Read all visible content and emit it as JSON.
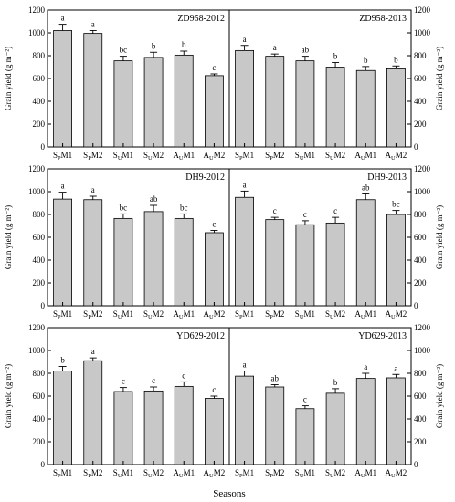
{
  "chart_data": {
    "type": "bar",
    "xlabel": "Seasons",
    "ylabel": "Grain yield (g m⁻²)",
    "ylim": [
      0,
      1200
    ],
    "yticks": [
      0,
      200,
      400,
      600,
      800,
      1000,
      1200
    ],
    "categories": [
      {
        "main1": "S",
        "sub": "P",
        "main2": "M1"
      },
      {
        "main1": "S",
        "sub": "P",
        "main2": "M2"
      },
      {
        "main1": "S",
        "sub": "U",
        "main2": "M1"
      },
      {
        "main1": "S",
        "sub": "U",
        "main2": "M2"
      },
      {
        "main1": "A",
        "sub": "U",
        "main2": "M1"
      },
      {
        "main1": "A",
        "sub": "U",
        "main2": "M2"
      }
    ],
    "panels": [
      {
        "title": "ZD958-2012",
        "values": [
          1020,
          995,
          755,
          785,
          805,
          625
        ],
        "errors": [
          55,
          25,
          40,
          45,
          35,
          15
        ],
        "letters": [
          "a",
          "a",
          "bc",
          "b",
          "b",
          "c"
        ]
      },
      {
        "title": "ZD958-2013",
        "values": [
          845,
          795,
          755,
          700,
          670,
          685
        ],
        "errors": [
          45,
          20,
          40,
          40,
          35,
          25
        ],
        "letters": [
          "a",
          "a",
          "ab",
          "b",
          "b",
          "b"
        ]
      },
      {
        "title": "DH9-2012",
        "values": [
          935,
          930,
          765,
          825,
          765,
          640
        ],
        "errors": [
          60,
          30,
          40,
          55,
          40,
          20
        ],
        "letters": [
          "a",
          "a",
          "bc",
          "ab",
          "bc",
          "c"
        ]
      },
      {
        "title": "DH9-2013",
        "values": [
          950,
          755,
          710,
          725,
          930,
          800
        ],
        "errors": [
          55,
          20,
          35,
          50,
          50,
          35
        ],
        "letters": [
          "a",
          "c",
          "c",
          "c",
          "ab",
          "bc"
        ]
      },
      {
        "title": "YD629-2012",
        "values": [
          820,
          910,
          640,
          645,
          685,
          580
        ],
        "errors": [
          40,
          25,
          35,
          35,
          40,
          20
        ],
        "letters": [
          "b",
          "a",
          "c",
          "c",
          "c",
          "c"
        ]
      },
      {
        "title": "YD629-2013",
        "values": [
          775,
          680,
          490,
          625,
          755,
          760
        ],
        "errors": [
          45,
          20,
          25,
          40,
          45,
          30
        ],
        "letters": [
          "a",
          "ab",
          "c",
          "b",
          "a",
          "a"
        ]
      }
    ]
  }
}
